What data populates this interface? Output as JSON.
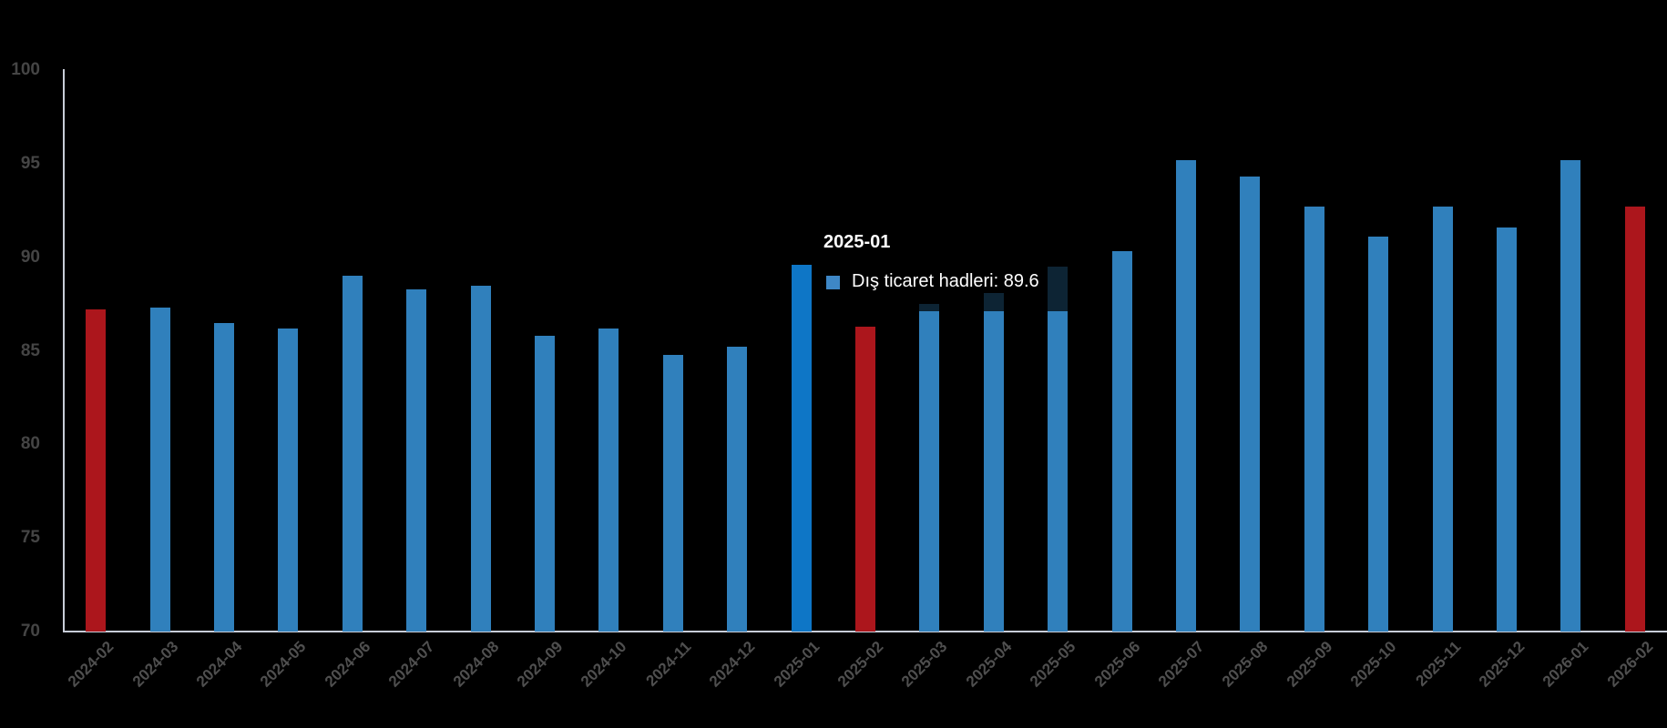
{
  "chart_data": {
    "type": "bar",
    "title": "",
    "xlabel": "",
    "ylabel": "",
    "ylim": [
      70,
      100
    ],
    "yticks": [
      70,
      75,
      80,
      85,
      90,
      95,
      100
    ],
    "grid": "off",
    "legend": "none",
    "series_name": "Dış ticaret hadleri",
    "points": [
      {
        "label": "2024-02",
        "value": 87.2,
        "role": "red"
      },
      {
        "label": "2024-03",
        "value": 87.3,
        "role": "blue"
      },
      {
        "label": "2024-04",
        "value": 86.5,
        "role": "blue"
      },
      {
        "label": "2024-05",
        "value": 86.2,
        "role": "blue"
      },
      {
        "label": "2024-06",
        "value": 89.0,
        "role": "blue"
      },
      {
        "label": "2024-07",
        "value": 88.3,
        "role": "blue"
      },
      {
        "label": "2024-08",
        "value": 88.5,
        "role": "blue"
      },
      {
        "label": "2024-09",
        "value": 85.8,
        "role": "blue"
      },
      {
        "label": "2024-10",
        "value": 86.2,
        "role": "blue"
      },
      {
        "label": "2024-11",
        "value": 84.8,
        "role": "blue"
      },
      {
        "label": "2024-12",
        "value": 85.2,
        "role": "blue"
      },
      {
        "label": "2025-01",
        "value": 89.6,
        "role": "highlight"
      },
      {
        "label": "2025-02",
        "value": 86.3,
        "role": "red"
      },
      {
        "label": "2025-03",
        "value": 87.5,
        "role": "blue"
      },
      {
        "label": "2025-04",
        "value": 88.1,
        "role": "blue"
      },
      {
        "label": "2025-05",
        "value": 89.5,
        "role": "blue"
      },
      {
        "label": "2025-06",
        "value": 90.3,
        "role": "blue"
      },
      {
        "label": "2025-07",
        "value": 95.2,
        "role": "blue"
      },
      {
        "label": "2025-08",
        "value": 94.3,
        "role": "blue"
      },
      {
        "label": "2025-09",
        "value": 92.7,
        "role": "blue"
      },
      {
        "label": "2025-10",
        "value": 91.1,
        "role": "blue"
      },
      {
        "label": "2025-11",
        "value": 92.7,
        "role": "blue"
      },
      {
        "label": "2025-12",
        "value": 91.6,
        "role": "blue"
      },
      {
        "label": "2026-01",
        "value": 95.2,
        "role": "blue"
      },
      {
        "label": "2026-02",
        "value": 92.7,
        "role": "red"
      }
    ]
  },
  "tooltip": {
    "title": "2025-01",
    "series_label": "Dış ticaret hadleri",
    "value": "89.6",
    "text": "Dış ticaret hadleri: 89.6"
  },
  "colors": {
    "background": "#000000",
    "bar_blue": "#3080BC",
    "bar_blue_highlight": "#0E76C6",
    "bar_red": "#AC161C",
    "axis_line": "#C8CDD8",
    "y_tick_label": "#454545",
    "x_tick_label": "#4F4F4F",
    "tooltip_text": "#FFFFFF",
    "tooltip_swatch": "#3E87C6"
  }
}
